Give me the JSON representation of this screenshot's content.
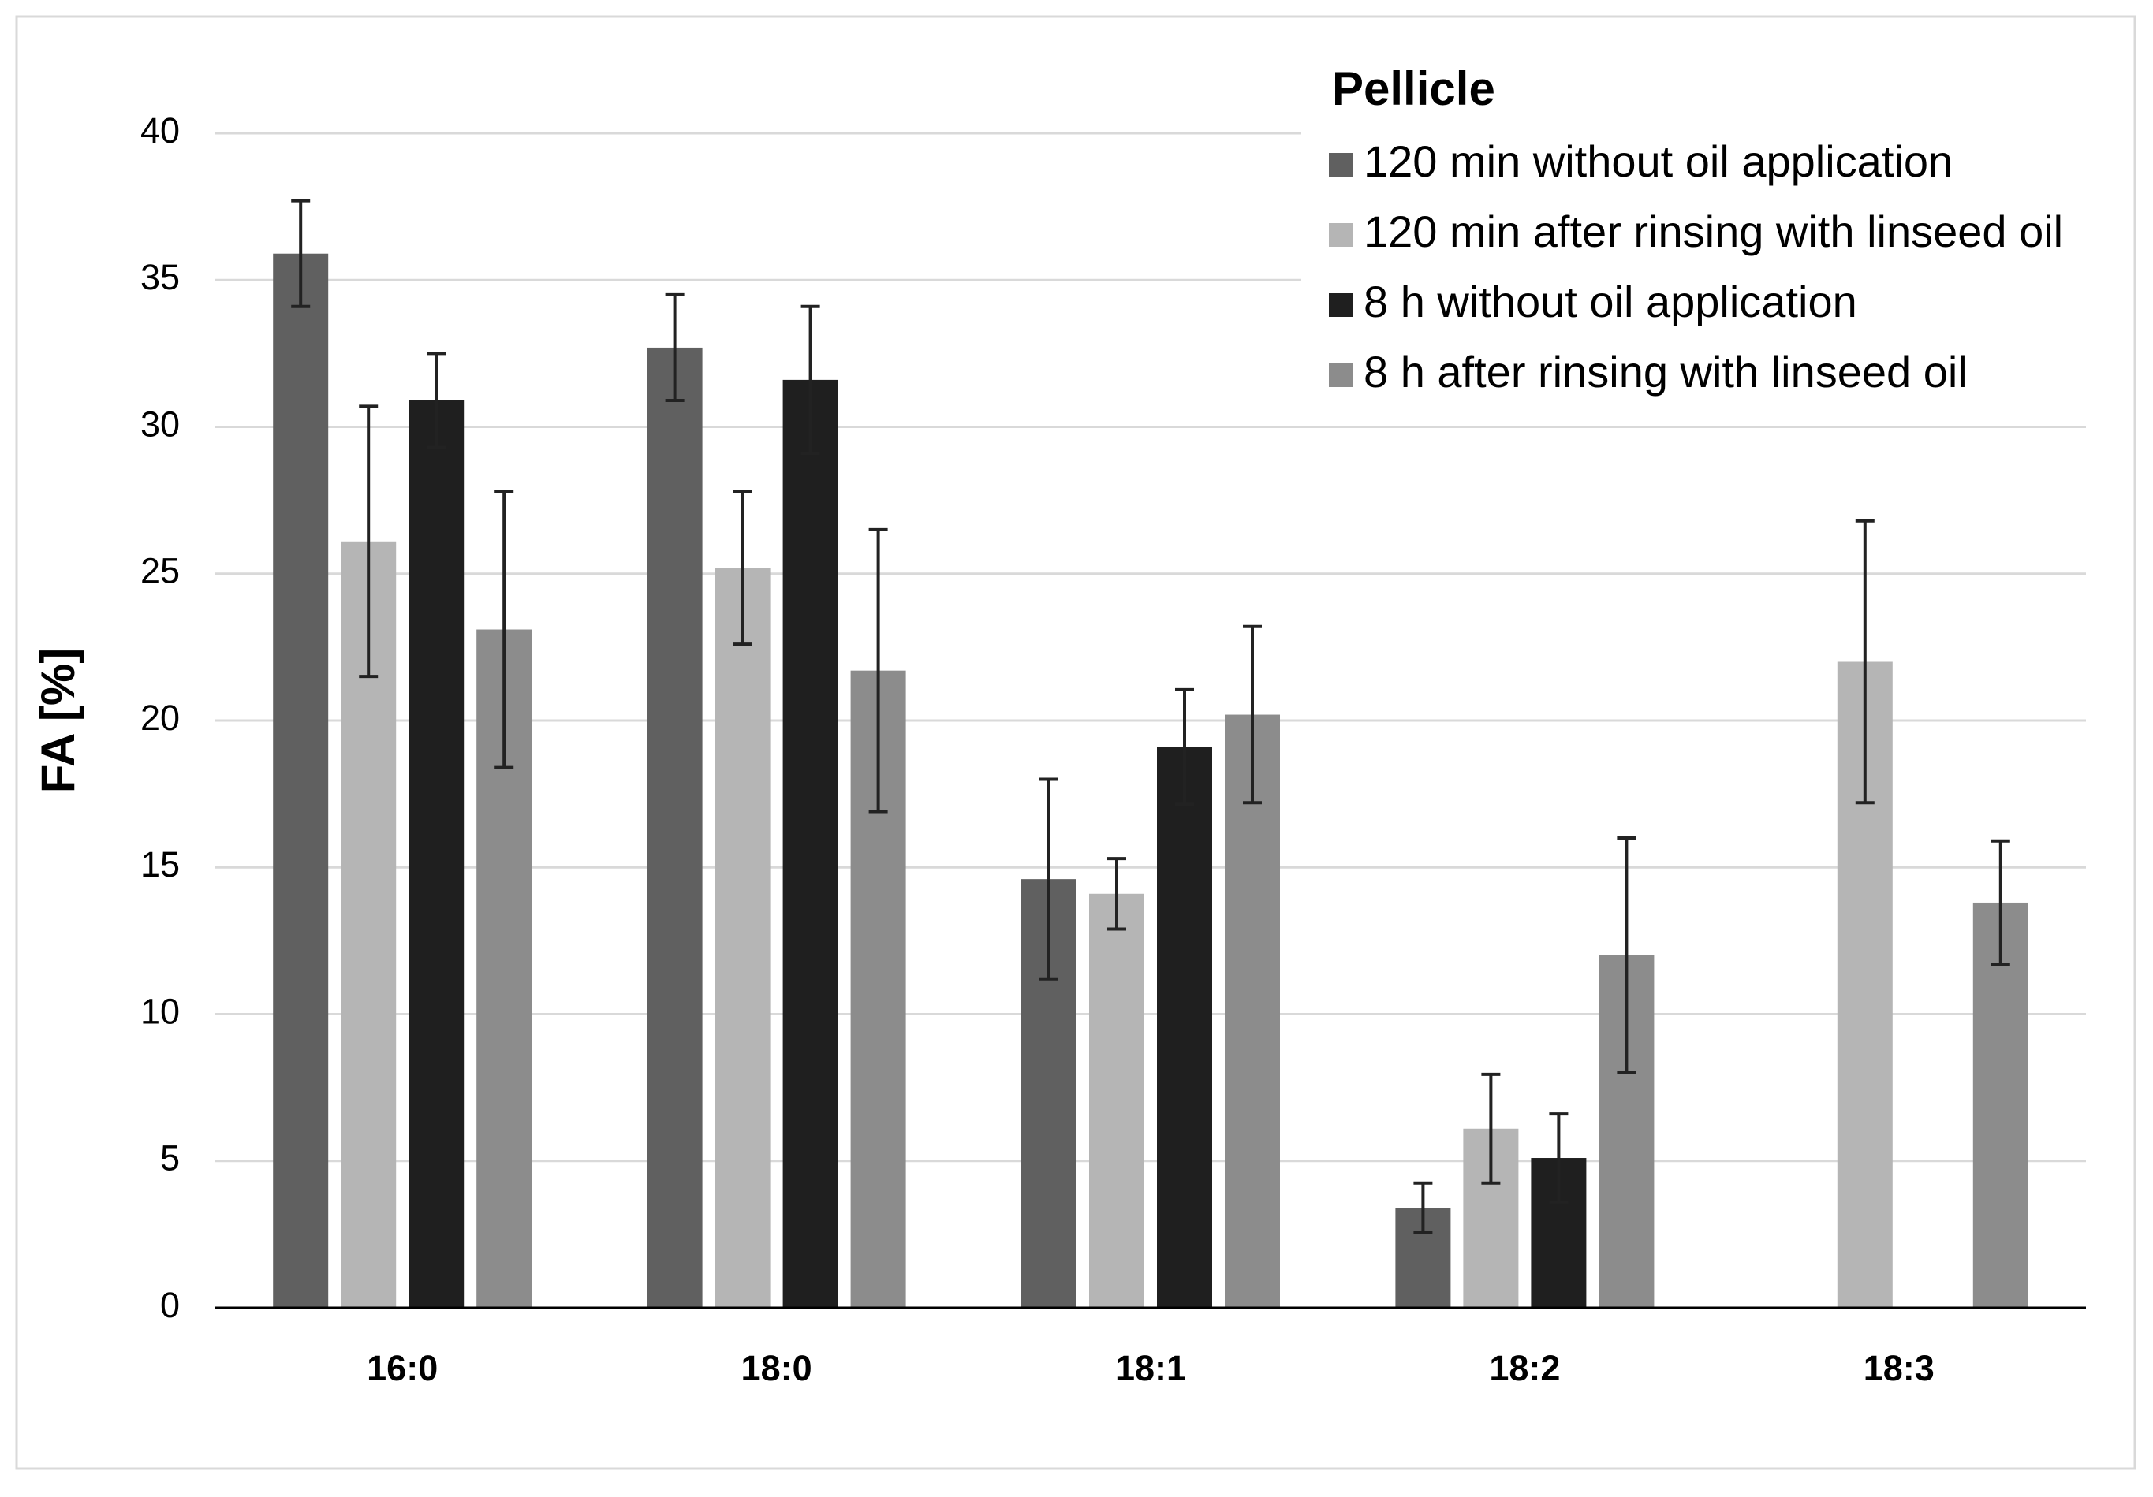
{
  "chart_data": {
    "type": "bar",
    "y_label": "FA [%]",
    "legend_title": "Pellicle",
    "categories": [
      "16:0",
      "18:0",
      "18:1",
      "18:2",
      "18:3"
    ],
    "series": [
      {
        "name": "120 min without oil application",
        "color": "#606060",
        "values": [
          35.9,
          32.7,
          14.6,
          3.4,
          null
        ],
        "errors": [
          1.8,
          1.8,
          3.4,
          0.85,
          null
        ]
      },
      {
        "name": "120 min after rinsing with linseed oil",
        "color": "#b5b5b5",
        "values": [
          26.1,
          25.2,
          14.1,
          6.1,
          22.0
        ],
        "errors": [
          4.6,
          2.6,
          1.2,
          1.85,
          4.8
        ]
      },
      {
        "name": "8 h without oil application",
        "color": "#1f1f1f",
        "values": [
          30.9,
          31.6,
          19.1,
          5.1,
          null
        ],
        "errors": [
          1.6,
          2.5,
          1.95,
          1.5,
          null
        ]
      },
      {
        "name": "8 h after rinsing with linseed oil",
        "color": "#8c8c8c",
        "values": [
          23.1,
          21.7,
          20.2,
          12.0,
          13.8
        ],
        "errors": [
          4.7,
          4.8,
          3.0,
          4.0,
          2.1
        ]
      }
    ],
    "ylim": [
      0,
      40
    ],
    "yticks": [
      0,
      5,
      10,
      15,
      20,
      25,
      30,
      35,
      40
    ],
    "grid": true,
    "legend_position": "upper right"
  }
}
